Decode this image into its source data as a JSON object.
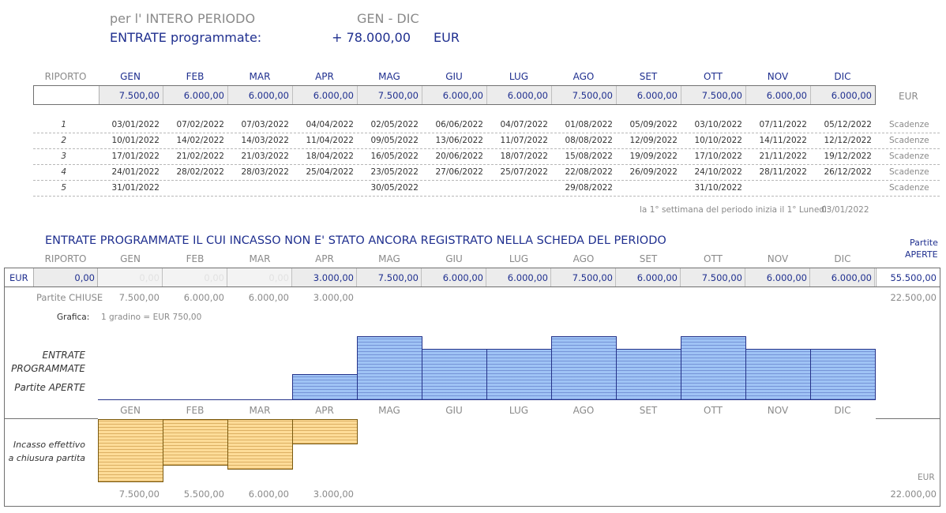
{
  "summary": {
    "period_label": "per l' INTERO PERIODO",
    "period_range": "GEN - DIC",
    "income_label": "ENTRATE programmate:",
    "income_total": "+ 78.000,00",
    "currency": "EUR"
  },
  "riporto_label": "RIPORTO",
  "months": [
    "GEN",
    "FEB",
    "MAR",
    "APR",
    "MAG",
    "GIU",
    "LUG",
    "AGO",
    "SET",
    "OTT",
    "NOV",
    "DIC"
  ],
  "programmed": {
    "values": [
      "7.500,00",
      "6.000,00",
      "6.000,00",
      "6.000,00",
      "7.500,00",
      "6.000,00",
      "6.000,00",
      "7.500,00",
      "6.000,00",
      "7.500,00",
      "6.000,00",
      "6.000,00"
    ],
    "unit": "EUR"
  },
  "deadlines": {
    "label": "Scadenze",
    "rows": [
      {
        "n": "1",
        "dates": [
          "03/01/2022",
          "07/02/2022",
          "07/03/2022",
          "04/04/2022",
          "02/05/2022",
          "06/06/2022",
          "04/07/2022",
          "01/08/2022",
          "05/09/2022",
          "03/10/2022",
          "07/11/2022",
          "05/12/2022"
        ]
      },
      {
        "n": "2",
        "dates": [
          "10/01/2022",
          "14/02/2022",
          "14/03/2022",
          "11/04/2022",
          "09/05/2022",
          "13/06/2022",
          "11/07/2022",
          "08/08/2022",
          "12/09/2022",
          "10/10/2022",
          "14/11/2022",
          "12/12/2022"
        ]
      },
      {
        "n": "3",
        "dates": [
          "17/01/2022",
          "21/02/2022",
          "21/03/2022",
          "18/04/2022",
          "16/05/2022",
          "20/06/2022",
          "18/07/2022",
          "15/08/2022",
          "19/09/2022",
          "17/10/2022",
          "21/11/2022",
          "19/12/2022"
        ]
      },
      {
        "n": "4",
        "dates": [
          "24/01/2022",
          "28/02/2022",
          "28/03/2022",
          "25/04/2022",
          "23/05/2022",
          "27/06/2022",
          "25/07/2022",
          "22/08/2022",
          "26/09/2022",
          "24/10/2022",
          "28/11/2022",
          "26/12/2022"
        ]
      },
      {
        "n": "5",
        "dates": [
          "31/01/2022",
          "",
          "",
          "",
          "30/05/2022",
          "",
          "",
          "29/08/2022",
          "",
          "31/10/2022",
          "",
          ""
        ]
      }
    ],
    "first_week_note": "la 1° settimana del periodo inizia il 1° Lunedì:",
    "first_week_date": "03/01/2022"
  },
  "open_section": {
    "title": "ENTRATE PROGRAMMATE IL CUI INCASSO NON E' STATO ANCORA REGISTRATO NELLA SCHEDA DEL PERIODO",
    "partite_label": "Partite",
    "aperte_label": "APERTE",
    "currency": "EUR",
    "riporto_value": "0,00",
    "open_values": [
      "0,00",
      "0,00",
      "0,00",
      "3.000,00",
      "7.500,00",
      "6.000,00",
      "6.000,00",
      "7.500,00",
      "6.000,00",
      "7.500,00",
      "6.000,00",
      "6.000,00"
    ],
    "open_total": "55.500,00",
    "closed_label": "Partite CHIUSE",
    "closed_values": [
      "7.500,00",
      "6.000,00",
      "6.000,00",
      "3.000,00",
      "",
      "",
      "",
      "",
      "",
      "",
      "",
      ""
    ],
    "closed_total": "22.500,00",
    "grafica_label": "Grafica:",
    "step_note": "1 gradino = EUR 750,00",
    "chart_label_1": "ENTRATE",
    "chart_label_2": "PROGRAMMATE",
    "chart_label_3": "Partite APERTE",
    "incasso_label_1": "Incasso effettivo",
    "incasso_label_2": "a chiusura partita",
    "incasso_currency": "EUR",
    "incasso_values": [
      "7.500,00",
      "5.500,00",
      "6.000,00",
      "3.000,00",
      "",
      "",
      "",
      "",
      "",
      "",
      "",
      ""
    ],
    "incasso_total": "22.000,00"
  },
  "chart_data": [
    {
      "type": "bar",
      "categories": [
        "GEN",
        "FEB",
        "MAR",
        "APR",
        "MAG",
        "GIU",
        "LUG",
        "AGO",
        "SET",
        "OTT",
        "NOV",
        "DIC"
      ],
      "values": [
        0,
        0,
        0,
        3000,
        7500,
        6000,
        6000,
        7500,
        6000,
        7500,
        6000,
        6000
      ],
      "ylabel": "ENTRATE PROGRAMMATE Partite APERTE",
      "ylim": [
        0,
        7500
      ],
      "step": 750,
      "color": "#9fc3f5"
    },
    {
      "type": "bar",
      "categories": [
        "GEN",
        "FEB",
        "MAR",
        "APR",
        "MAG",
        "GIU",
        "LUG",
        "AGO",
        "SET",
        "OTT",
        "NOV",
        "DIC"
      ],
      "values": [
        7500,
        5500,
        6000,
        3000,
        0,
        0,
        0,
        0,
        0,
        0,
        0,
        0
      ],
      "ylabel": "Incasso effettivo a chiusura partita",
      "ylim": [
        0,
        7500
      ],
      "step": 750,
      "direction": "down",
      "color": "#fddc98"
    }
  ]
}
